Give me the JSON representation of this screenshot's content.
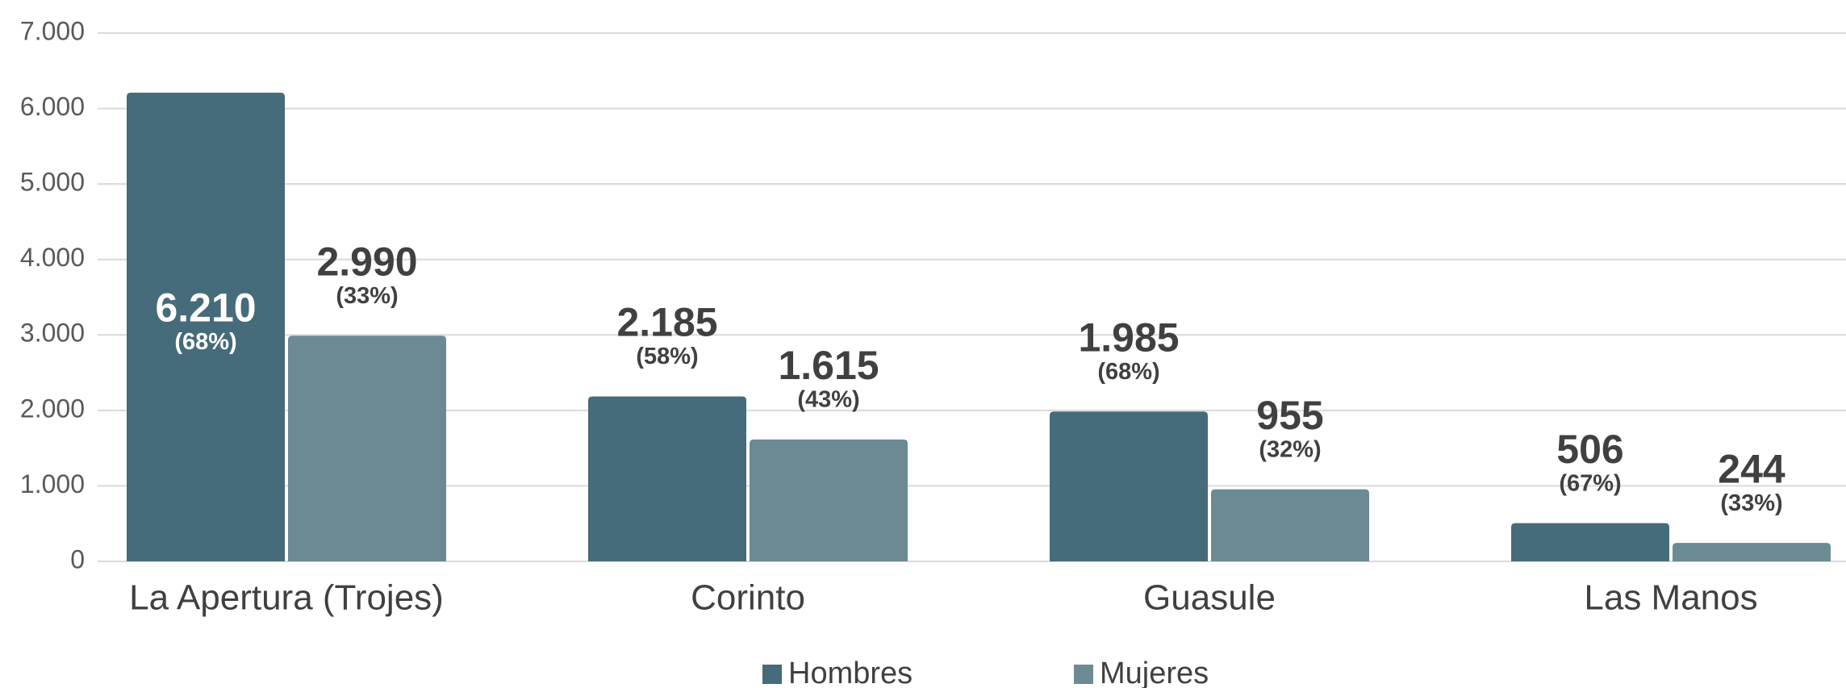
{
  "chart_data": {
    "type": "bar",
    "categories": [
      "La Apertura (Trojes)",
      "Corinto",
      "Guasule",
      "Las Manos"
    ],
    "series": [
      {
        "name": "Hombres",
        "color": "#466b7a",
        "values": [
          6210,
          2185,
          1985,
          506
        ],
        "value_labels": [
          "6.210",
          "2.185",
          "1.985",
          "506"
        ],
        "share_labels": [
          "(68%)",
          "(58%)",
          "(68%)",
          "(67%)"
        ]
      },
      {
        "name": "Mujeres",
        "color": "#6b8a94",
        "values": [
          2990,
          1615,
          955,
          244
        ],
        "value_labels": [
          "2.990",
          "1.615",
          "955",
          "244"
        ],
        "share_labels": [
          "(33%)",
          "(43%)",
          "(32%)",
          "(33%)"
        ]
      }
    ],
    "ylim": [
      0,
      7000
    ],
    "yticks": [
      0,
      {
        "value": 1000,
        "label": "1.000"
      },
      {
        "value": 2000,
        "label": "2.000"
      },
      {
        "value": 3000,
        "label": "3.000"
      },
      {
        "value": 4000,
        "label": "4.000"
      },
      {
        "value": 5000,
        "label": "5.000"
      },
      {
        "value": 6000,
        "label": "6.000"
      },
      {
        "value": 7000,
        "label": "7.000"
      }
    ],
    "grid": true,
    "legend": "bottom"
  }
}
